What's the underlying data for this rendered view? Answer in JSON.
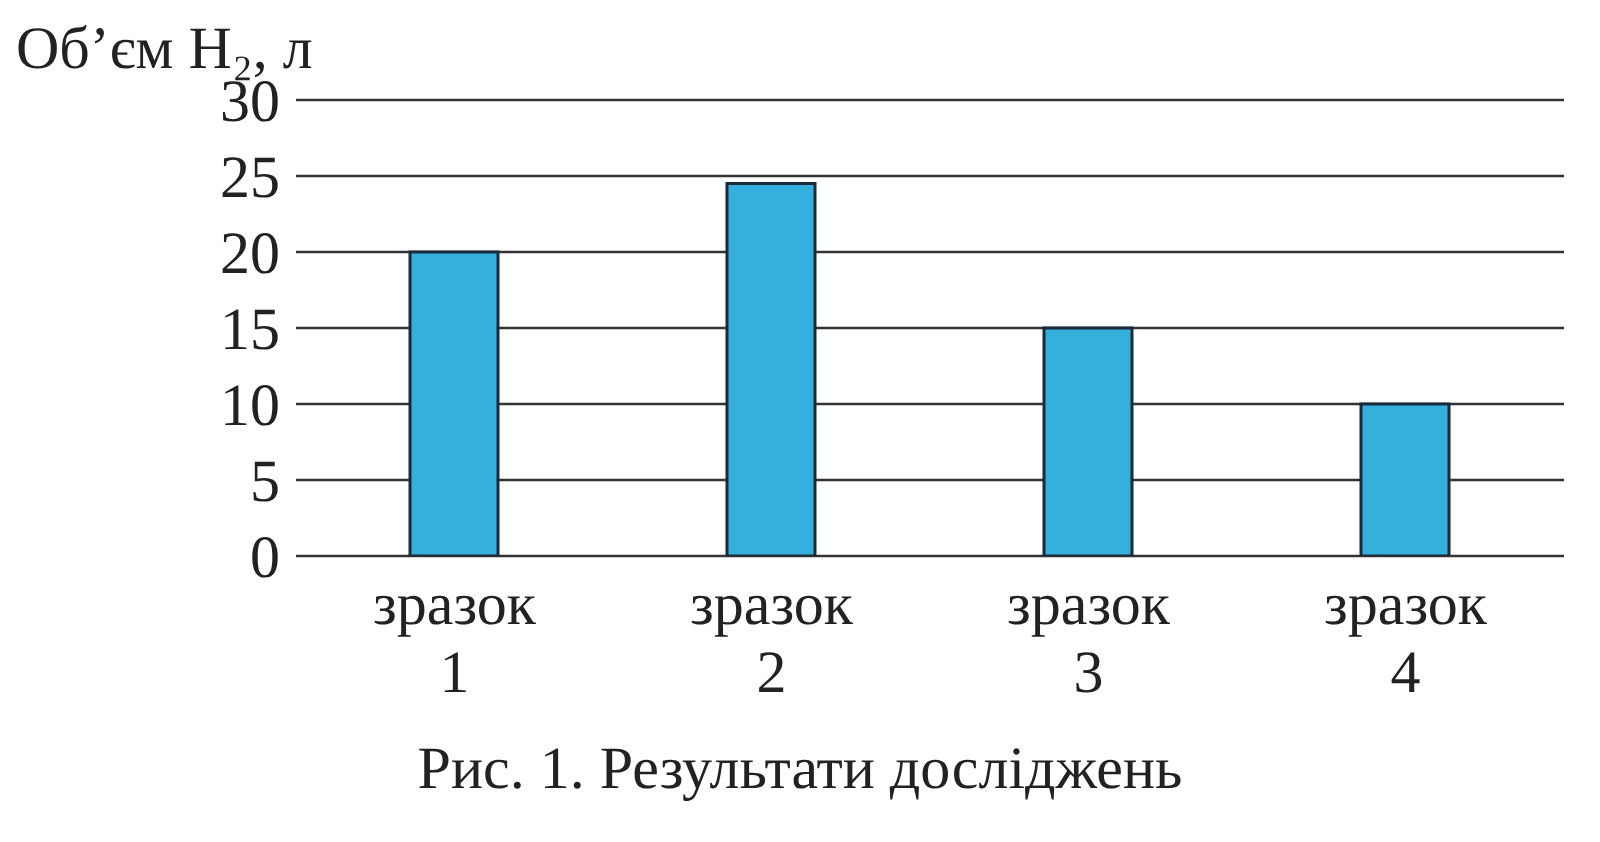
{
  "chart_data": {
    "type": "bar",
    "ylabel": "Об’єм H₂, л",
    "categories": [
      "зразок 1",
      "зразок 2",
      "зразок 3",
      "зразок 4"
    ],
    "values": [
      20,
      24.5,
      15,
      10
    ],
    "color": "#35b0dc",
    "ylim": [
      0,
      30
    ],
    "yticks": [
      0,
      5,
      10,
      15,
      20,
      25,
      30
    ],
    "grid": "y",
    "annotations": [
      "Рис. 1. Результати досліджень"
    ]
  }
}
